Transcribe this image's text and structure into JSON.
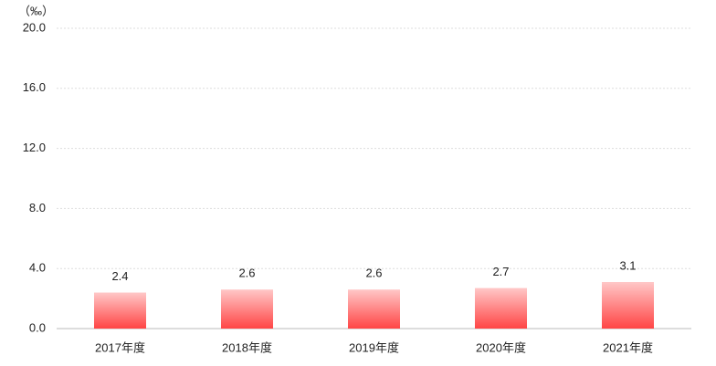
{
  "chart_data": {
    "type": "bar",
    "y_axis_label": "（‰）",
    "categories": [
      "2017年度",
      "2018年度",
      "2019年度",
      "2020年度",
      "2021年度"
    ],
    "values": [
      2.4,
      2.6,
      2.6,
      2.7,
      3.1
    ],
    "color": "#ff4545",
    "ylim": [
      0,
      20
    ],
    "yticks": [
      {
        "value": 0,
        "label": "0.0"
      },
      {
        "value": 4,
        "label": "4.0"
      },
      {
        "value": 8,
        "label": "8.0"
      },
      {
        "value": 12,
        "label": "12.0"
      },
      {
        "value": 16,
        "label": "16.0"
      },
      {
        "value": 20,
        "label": "20.0"
      }
    ],
    "grid": true
  }
}
